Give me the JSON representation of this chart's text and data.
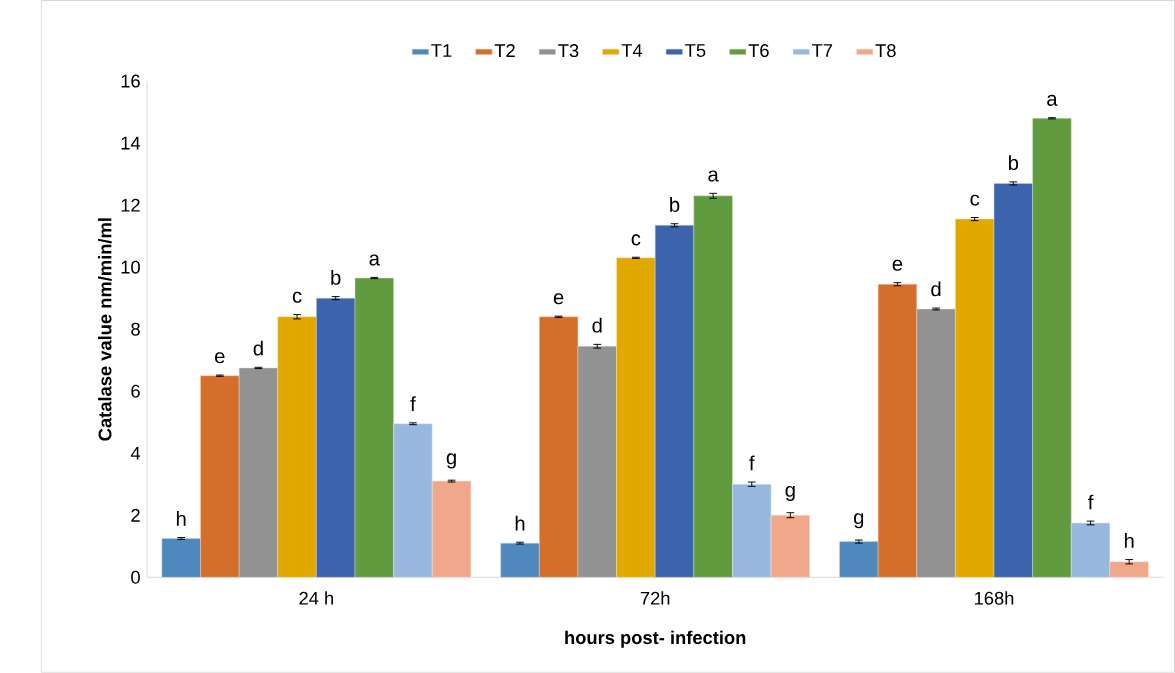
{
  "chart_data": {
    "type": "bar",
    "xlabel": "hours post- infection",
    "ylabel": "Catalase value nm/min/ml",
    "categories": [
      "24 h",
      "72h",
      "168h"
    ],
    "series": [
      {
        "name": "T1",
        "color": "#4f88bd",
        "values": [
          1.25,
          1.1,
          1.15
        ],
        "errors": [
          0.03,
          0.03,
          0.05
        ]
      },
      {
        "name": "T2",
        "color": "#d46e2b",
        "values": [
          6.5,
          8.4,
          9.45
        ],
        "errors": [
          0.02,
          0.02,
          0.05
        ]
      },
      {
        "name": "T3",
        "color": "#929292",
        "values": [
          6.75,
          7.45,
          8.65
        ],
        "errors": [
          0.02,
          0.06,
          0.03
        ]
      },
      {
        "name": "T4",
        "color": "#e1a800",
        "values": [
          8.4,
          10.3,
          11.55
        ],
        "errors": [
          0.07,
          0.02,
          0.05
        ]
      },
      {
        "name": "T5",
        "color": "#3c64ac",
        "values": [
          9.0,
          11.35,
          12.7
        ],
        "errors": [
          0.05,
          0.05,
          0.05
        ]
      },
      {
        "name": "T6",
        "color": "#629a40",
        "values": [
          9.65,
          12.3,
          14.8
        ],
        "errors": [
          0.02,
          0.08,
          0.02
        ]
      },
      {
        "name": "T7",
        "color": "#98b8de",
        "values": [
          4.95,
          3.0,
          1.75
        ],
        "errors": [
          0.03,
          0.07,
          0.06
        ]
      },
      {
        "name": "T8",
        "color": "#f0a78a",
        "values": [
          3.1,
          2.0,
          0.5
        ],
        "errors": [
          0.03,
          0.08,
          0.07
        ]
      }
    ],
    "ylim": [
      0,
      16
    ],
    "yticks": [
      0,
      2,
      4,
      6,
      8,
      10,
      12,
      14,
      16
    ],
    "grid": false,
    "legend": "top",
    "annotations": [
      "h",
      "e",
      "d",
      "c",
      "b",
      "a",
      "f",
      "g",
      "h",
      "e",
      "d",
      "c",
      "b",
      "a",
      "f",
      "g",
      "g",
      "e",
      "d",
      "c",
      "b",
      "a",
      "f",
      "h"
    ]
  }
}
